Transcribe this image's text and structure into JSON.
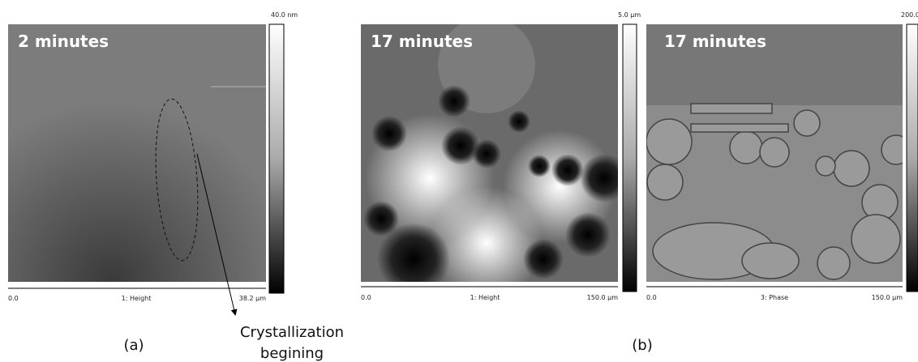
{
  "panels": [
    {
      "caption": "2 minutes",
      "scale_top": "40.0 nm",
      "x_start": "0.0",
      "channel": "1: Height",
      "x_end": "38.2 µm"
    },
    {
      "caption": "17 minutes",
      "scale_top": "5.0 µm",
      "x_start": "0.0",
      "channel": "1: Height",
      "x_end": "150.0 µm"
    },
    {
      "caption": "17 minutes",
      "scale_top": "200.0",
      "x_start": "0.0",
      "channel": "3: Phase",
      "x_end": "150.0 µm"
    }
  ],
  "figure_labels": [
    "(a)",
    "(b)"
  ],
  "annotation": {
    "line1": "Crystallization",
    "line2": "begining"
  }
}
